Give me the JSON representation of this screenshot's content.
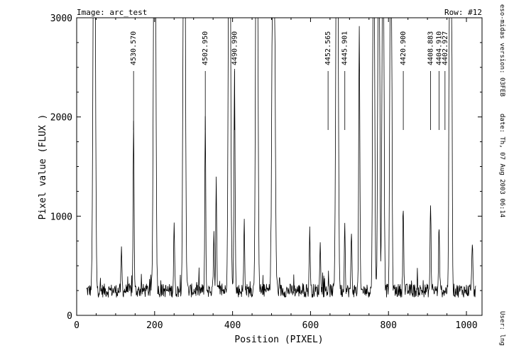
{
  "chart_data": {
    "type": "line",
    "header_left": "Image: arc_test",
    "header_right": "Row: #12",
    "xlabel": "Position (PIXEL)",
    "ylabel": "Pixel value (FLUX )",
    "xlim": [
      0,
      1040
    ],
    "ylim": [
      0,
      3000
    ],
    "x_ticks": [
      0,
      200,
      400,
      600,
      800,
      1000
    ],
    "y_ticks": [
      0,
      1000,
      2000,
      3000
    ],
    "grid": false,
    "side_texts": [
      "eso-midas version: 03FEB",
      "date: Th, 07 Aug 2003 06:14",
      "User: lng"
    ],
    "baseline": 250,
    "x_start": 25,
    "x_end": 1024,
    "peaks": [
      {
        "x": 45,
        "y": 6000,
        "w": 2.5
      },
      {
        "x": 115,
        "y": 400,
        "w": 1.2
      },
      {
        "x": 146,
        "y": 1750,
        "w": 1.2
      },
      {
        "x": 200,
        "y": 6000,
        "w": 2.5
      },
      {
        "x": 250,
        "y": 700,
        "w": 1.2
      },
      {
        "x": 276,
        "y": 6000,
        "w": 2.5
      },
      {
        "x": 330,
        "y": 1700,
        "w": 1.2
      },
      {
        "x": 352,
        "y": 650,
        "w": 1.2
      },
      {
        "x": 358,
        "y": 1150,
        "w": 1.2
      },
      {
        "x": 392,
        "y": 6000,
        "w": 2.5
      },
      {
        "x": 405,
        "y": 2200,
        "w": 1.4
      },
      {
        "x": 430,
        "y": 700,
        "w": 1.2
      },
      {
        "x": 462,
        "y": 6000,
        "w": 2.5
      },
      {
        "x": 505,
        "y": 6000,
        "w": 3.0
      },
      {
        "x": 598,
        "y": 650,
        "w": 1.2
      },
      {
        "x": 625,
        "y": 520,
        "w": 1.2
      },
      {
        "x": 668,
        "y": 6000,
        "w": 2.5
      },
      {
        "x": 688,
        "y": 700,
        "w": 1.2
      },
      {
        "x": 705,
        "y": 600,
        "w": 1.2
      },
      {
        "x": 725,
        "y": 2640,
        "w": 1.4
      },
      {
        "x": 762,
        "y": 6000,
        "w": 2.0
      },
      {
        "x": 775,
        "y": 6000,
        "w": 2.0
      },
      {
        "x": 786,
        "y": 6000,
        "w": 2.0
      },
      {
        "x": 806,
        "y": 6000,
        "w": 2.0
      },
      {
        "x": 838,
        "y": 870,
        "w": 1.2
      },
      {
        "x": 908,
        "y": 900,
        "w": 1.2
      },
      {
        "x": 930,
        "y": 640,
        "w": 1.2
      },
      {
        "x": 958,
        "y": 6000,
        "w": 2.0
      },
      {
        "x": 962,
        "y": 2620,
        "w": 1.4
      },
      {
        "x": 1015,
        "y": 520,
        "w": 1.2
      }
    ],
    "annotations": [
      {
        "label": "4530.570",
        "x": 146
      },
      {
        "label": "4502.950",
        "x": 330
      },
      {
        "label": "4490.990",
        "x": 405
      },
      {
        "label": "4452.565",
        "x": 645
      },
      {
        "label": "4445.901",
        "x": 688
      },
      {
        "label": "4420.900",
        "x": 838
      },
      {
        "label": "4408.883",
        "x": 908
      },
      {
        "label": "4404.910",
        "x": 930
      },
      {
        "label": "4402.927",
        "x": 945
      }
    ]
  }
}
